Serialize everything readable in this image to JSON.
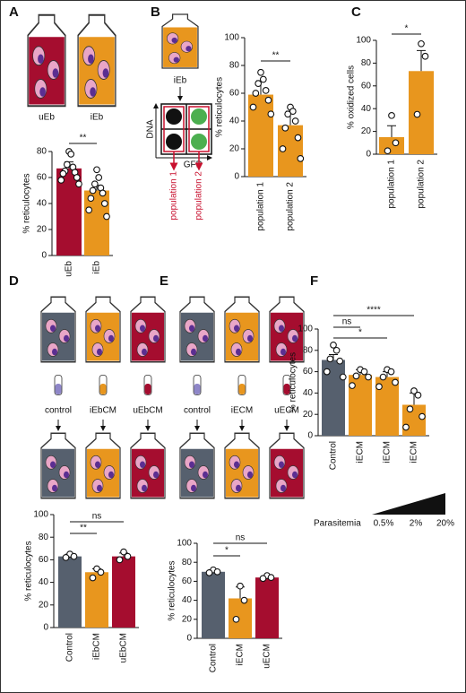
{
  "panels": [
    "A",
    "B",
    "C",
    "D",
    "E",
    "F"
  ],
  "diagram": {
    "A": [
      "uEb",
      "iEb"
    ],
    "B": {
      "flask": "iEb",
      "y_axis": "DNA",
      "x_axis": "GFP",
      "gates": [
        "population 1",
        "population 2"
      ]
    },
    "D": [
      "control",
      "iEbCM",
      "uEbCM"
    ],
    "E": [
      "control",
      "iECM",
      "uECM"
    ],
    "F": {
      "label": "Parasitemia",
      "levels": [
        "0.5%",
        "2%",
        "20%"
      ]
    }
  },
  "chart_data": [
    {
      "type": "bar",
      "ylabel": "% reticulocytes",
      "categories": [
        "uEb",
        "iEb"
      ],
      "values": [
        67,
        50
      ],
      "errors": [
        5,
        4
      ],
      "points": [
        [
          80,
          78,
          70,
          68,
          65,
          64,
          63,
          60,
          58,
          55
        ],
        [
          66,
          60,
          55,
          52,
          50,
          48,
          44,
          40,
          35,
          30
        ]
      ],
      "colors": [
        "#a50d2f",
        "#e8961e"
      ],
      "ylim": [
        0,
        80
      ],
      "yticks": [
        0,
        20,
        40,
        60,
        80
      ],
      "significance": [
        "**"
      ]
    },
    {
      "type": "bar",
      "ylabel": "% reticulocytes",
      "categories": [
        "population 1",
        "population 2"
      ],
      "values": [
        59,
        37
      ],
      "errors": [
        10,
        10
      ],
      "points": [
        [
          75,
          70,
          67,
          62,
          60,
          55,
          50,
          45
        ],
        [
          50,
          47,
          45,
          40,
          35,
          28,
          20,
          13
        ]
      ],
      "colors": [
        "#e8961e",
        "#e8961e"
      ],
      "ylim": [
        0,
        100
      ],
      "yticks": [
        0,
        20,
        40,
        60,
        80,
        100
      ],
      "significance": [
        "**"
      ]
    },
    {
      "type": "bar",
      "ylabel": "% oxidized cells",
      "categories": [
        "population 1",
        "population 2"
      ],
      "values": [
        15,
        73
      ],
      "errors": [
        10,
        18
      ],
      "points": [
        [
          34,
          10,
          3
        ],
        [
          97,
          86,
          35
        ]
      ],
      "colors": [
        "#e8961e",
        "#e8961e"
      ],
      "ylim": [
        0,
        100
      ],
      "yticks": [
        0,
        20,
        40,
        60,
        80,
        100
      ],
      "significance": [
        "*"
      ]
    },
    {
      "type": "bar",
      "ylabel": "% reticulocytes",
      "categories": [
        "Control",
        "iEbCM",
        "uEbCM"
      ],
      "values": [
        63,
        49,
        63
      ],
      "errors": [
        2,
        3,
        3
      ],
      "points": [
        [
          65,
          63,
          62
        ],
        [
          52,
          49,
          44
        ],
        [
          67,
          63,
          60
        ]
      ],
      "colors": [
        "#56606e",
        "#e8961e",
        "#a50d2f"
      ],
      "ylim": [
        0,
        100
      ],
      "yticks": [
        0,
        20,
        40,
        60,
        80,
        100
      ],
      "significance": [
        "**",
        "ns"
      ]
    },
    {
      "type": "bar",
      "ylabel": "% reticulocytes",
      "categories": [
        "Control",
        "iECM",
        "uECM"
      ],
      "values": [
        70,
        42,
        64
      ],
      "errors": [
        2,
        12,
        1
      ],
      "points": [
        [
          72,
          70,
          69
        ],
        [
          55,
          40,
          20
        ],
        [
          66,
          64,
          63
        ]
      ],
      "colors": [
        "#56606e",
        "#e8961e",
        "#a50d2f"
      ],
      "ylim": [
        0,
        100
      ],
      "yticks": [
        0,
        20,
        40,
        60,
        80,
        100
      ],
      "significance": [
        "*",
        "ns"
      ]
    },
    {
      "type": "bar",
      "ylabel": "% reticulocytes",
      "categories": [
        "Control",
        "iECM",
        "iECM",
        "iECM"
      ],
      "values": [
        71,
        57,
        55,
        29
      ],
      "errors": [
        5,
        5,
        5,
        11
      ],
      "points": [
        [
          85,
          80,
          72,
          70,
          60,
          55
        ],
        [
          62,
          60,
          56,
          55,
          47
        ],
        [
          62,
          60,
          55,
          50,
          46
        ],
        [
          42,
          38,
          25,
          18,
          8
        ]
      ],
      "colors": [
        "#56606e",
        "#e8961e",
        "#e8961e",
        "#e8961e"
      ],
      "ylim": [
        0,
        100
      ],
      "yticks": [
        0,
        20,
        40,
        60,
        80,
        100
      ],
      "significance": [
        "****",
        "ns",
        "*"
      ]
    }
  ]
}
